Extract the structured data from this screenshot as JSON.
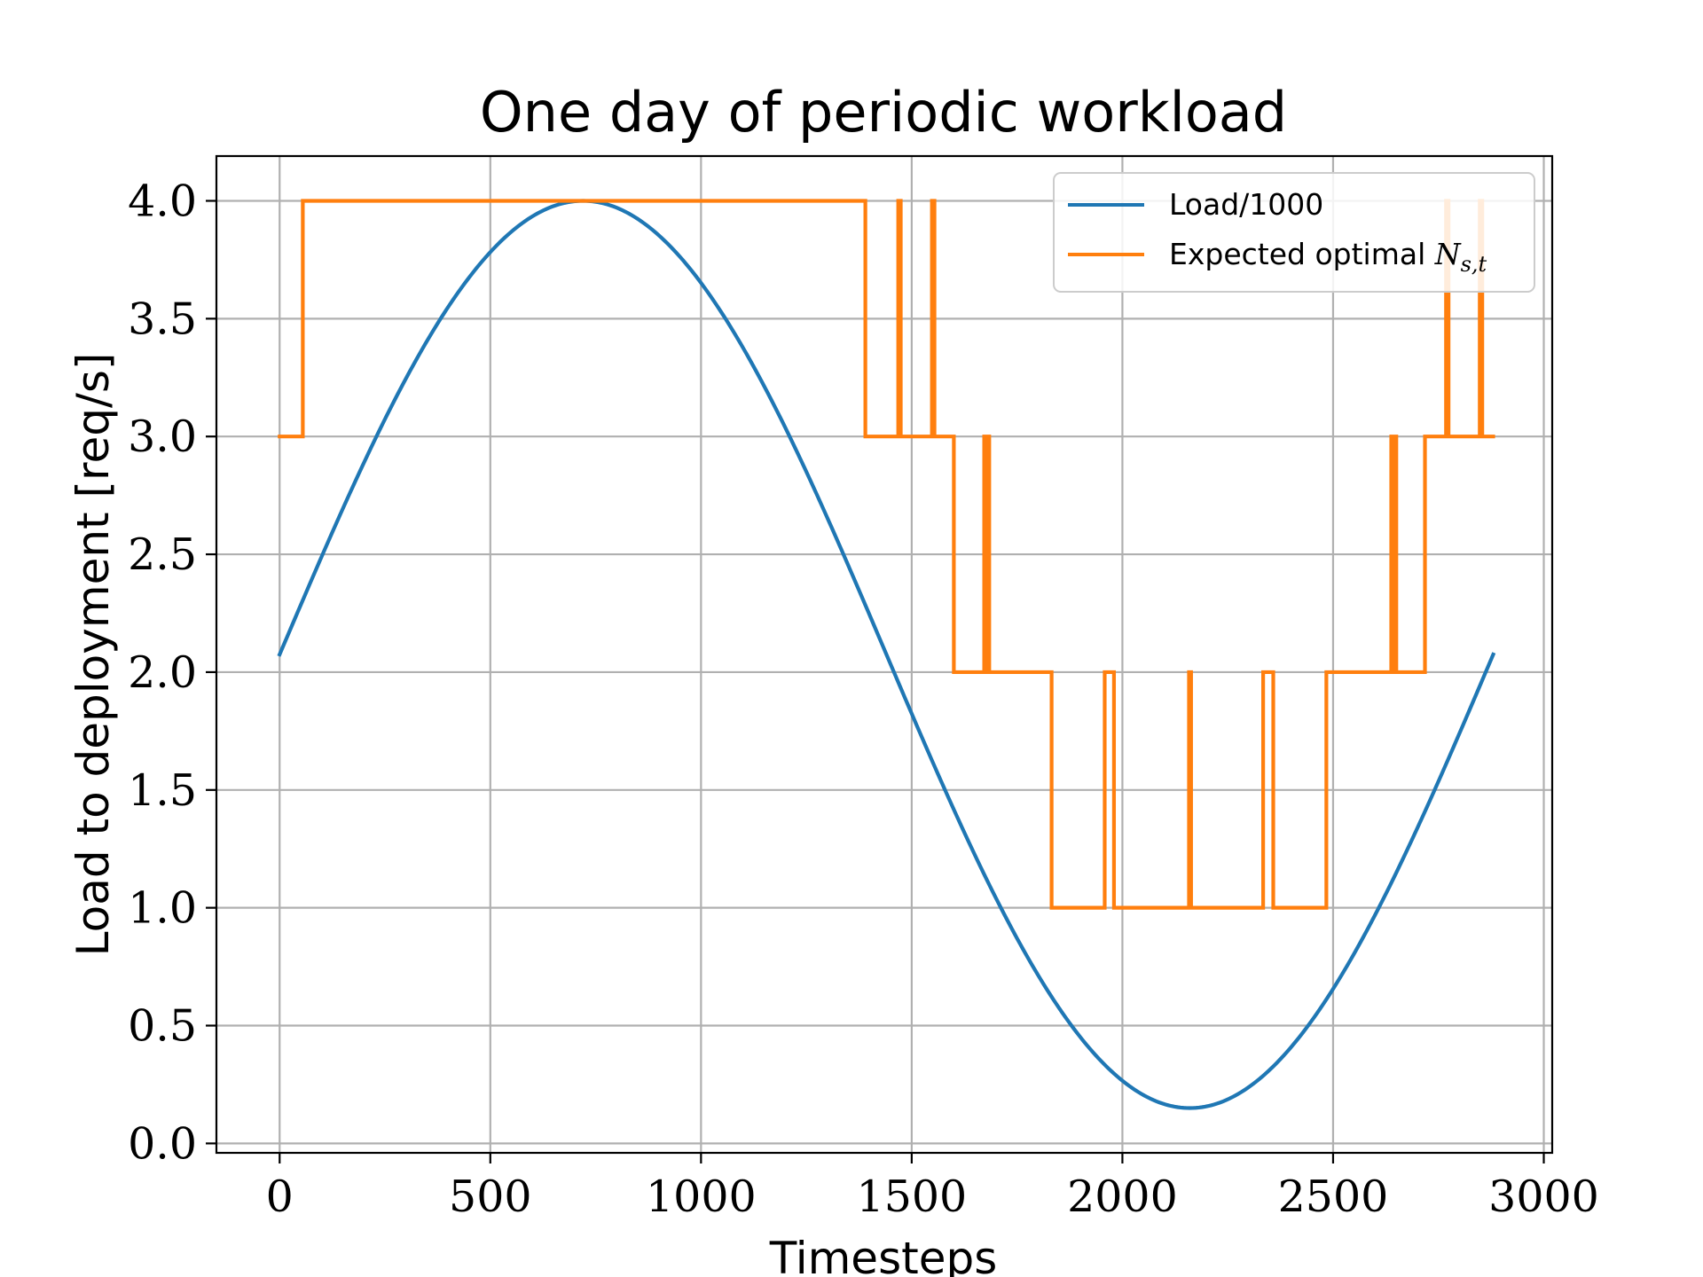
{
  "chart_data": {
    "type": "line",
    "title": "One day of periodic workload",
    "xlabel": "Timesteps",
    "ylabel": "Load to deployment [req/s]",
    "xlim": [
      -150,
      3020
    ],
    "ylim": [
      -0.04,
      4.19
    ],
    "xticks": [
      0,
      500,
      1000,
      1500,
      2000,
      2500,
      3000
    ],
    "xtick_labels": [
      "0",
      "500",
      "1000",
      "1500",
      "2000",
      "2500",
      "3000"
    ],
    "yticks": [
      0.0,
      0.5,
      1.0,
      1.5,
      2.0,
      2.5,
      3.0,
      3.5,
      4.0
    ],
    "ytick_labels": [
      "0.0",
      "0.5",
      "1.0",
      "1.5",
      "2.0",
      "2.5",
      "3.0",
      "3.5",
      "4.0"
    ],
    "grid": true,
    "legend_position": "top-right",
    "series": [
      {
        "name": "Load/1000",
        "color": "#1f77b4",
        "kind": "sine",
        "mean": 2.075,
        "amplitude": 1.925,
        "period": 2880,
        "x_start": 0,
        "x_end": 2880
      },
      {
        "name": "Expected optimal ",
        "name_math": "N",
        "name_sub": "s,t",
        "color": "#ff7f0e",
        "kind": "step",
        "steps": [
          [
            0,
            3
          ],
          [
            55,
            4
          ],
          [
            1390,
            3
          ],
          [
            1468,
            4
          ],
          [
            1474,
            3
          ],
          [
            1548,
            4
          ],
          [
            1554,
            3
          ],
          [
            1600,
            2
          ],
          [
            1672,
            3
          ],
          [
            1676,
            2
          ],
          [
            1680,
            3
          ],
          [
            1684,
            2
          ],
          [
            1832,
            1
          ],
          [
            1958,
            2
          ],
          [
            1962,
            2
          ],
          [
            1966,
            2
          ],
          [
            1968,
            2
          ],
          [
            1972,
            2
          ],
          [
            1980,
            1
          ],
          [
            2158,
            2
          ],
          [
            2163,
            1
          ],
          [
            2334,
            2
          ],
          [
            2340,
            2
          ],
          [
            2344,
            2
          ],
          [
            2358,
            1
          ],
          [
            2484,
            2
          ],
          [
            2638,
            3
          ],
          [
            2642,
            2
          ],
          [
            2646,
            3
          ],
          [
            2650,
            2
          ],
          [
            2718,
            3
          ],
          [
            2768,
            4
          ],
          [
            2774,
            3
          ],
          [
            2848,
            4
          ],
          [
            2854,
            3
          ]
        ],
        "x_end": 2880
      }
    ]
  }
}
